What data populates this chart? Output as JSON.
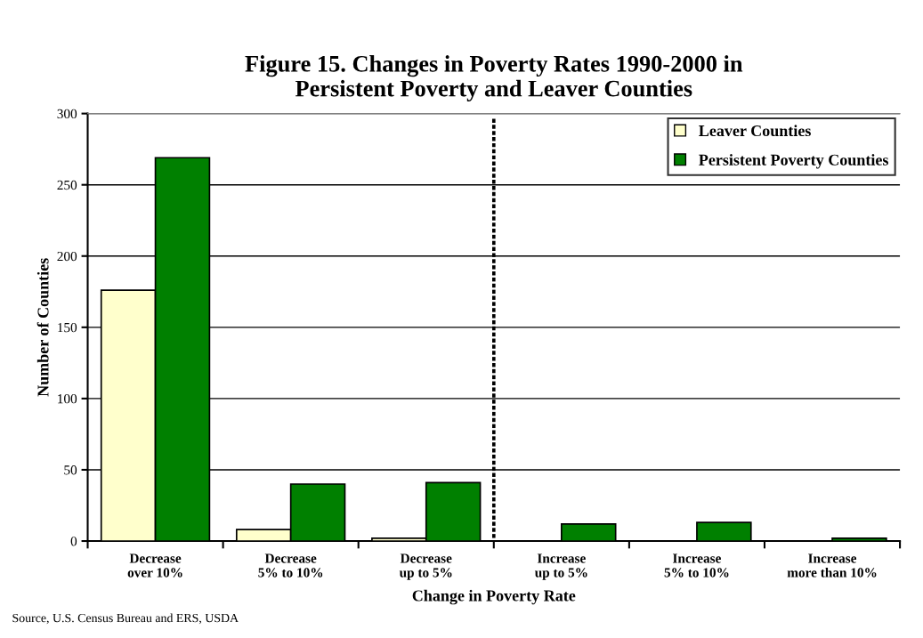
{
  "chart_data": {
    "type": "bar",
    "title": "Figure 15. Changes in Poverty Rates 1990-2000 in\nPersistent Poverty and Leaver Counties",
    "xlabel": "Change in Poverty Rate",
    "ylabel": "Number of Counties",
    "categories": [
      "Decrease\nover 10%",
      "Decrease\n5% to 10%",
      "Decrease\nup to 5%",
      "Increase\nup to 5%",
      "Increase\n5% to 10%",
      "Increase\nmore than 10%"
    ],
    "series": [
      {
        "name": "Leaver Counties",
        "color": "#ffffcc",
        "values": [
          176,
          8,
          2,
          0,
          0,
          0
        ]
      },
      {
        "name": "Persistent Poverty Counties",
        "color": "#008000",
        "values": [
          269,
          40,
          41,
          12,
          13,
          2
        ]
      }
    ],
    "ylim": [
      0,
      300
    ],
    "yticks": [
      0,
      50,
      100,
      150,
      200,
      250,
      300
    ],
    "grid": "y",
    "legend": "top right",
    "annotations": [
      "Source, U.S. Census Bureau and ERS, USDA"
    ]
  }
}
